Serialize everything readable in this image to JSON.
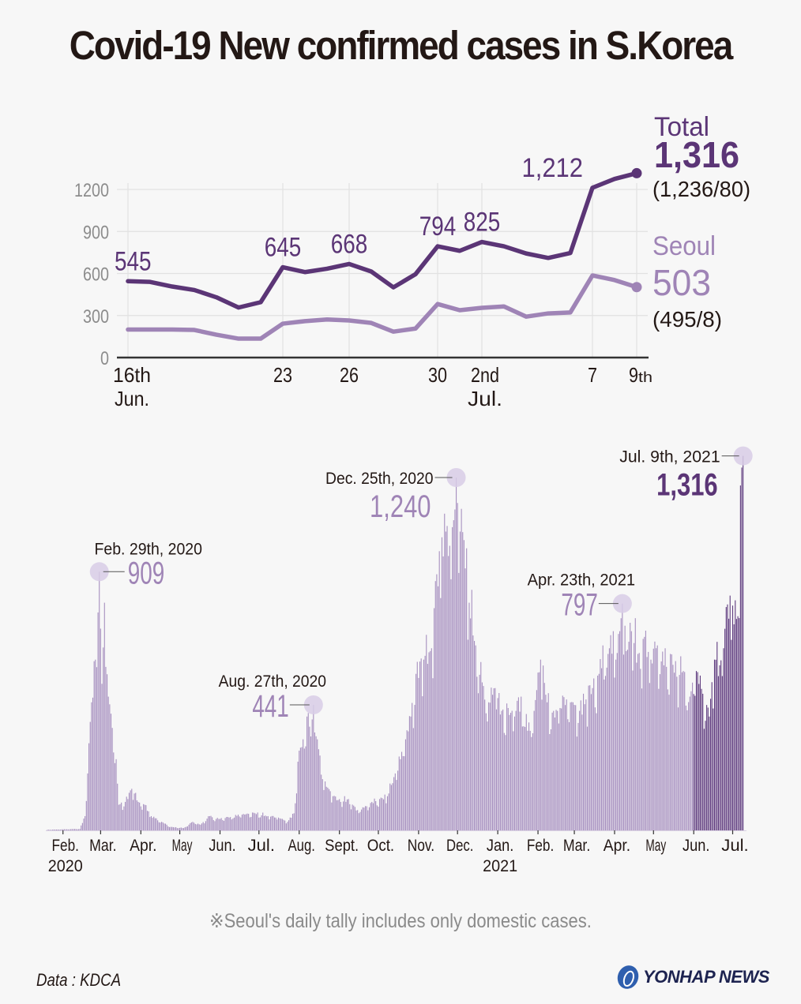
{
  "title": "Covid-19 New confirmed cases in S.Korea",
  "footnote": "※Seoul's daily tally includes only domestic cases.",
  "source": "Data : KDCA",
  "logo": "YONHAP NEWS",
  "colors": {
    "total": "#5b3576",
    "seoul": "#9f84b6",
    "bars": "#a68fbf",
    "bars_recent": "#5e3a7e",
    "marker": "#d8cde6",
    "grid": "#e2e2e2",
    "axis": "#333333",
    "tick_text": "#8c8c8c",
    "text": "#231815"
  },
  "chart_data": [
    {
      "type": "line",
      "title": "",
      "xlabel": "",
      "ylabel": "",
      "ylim": [
        0,
        1200
      ],
      "yticks": [
        0,
        300,
        600,
        900,
        1200
      ],
      "grid": true,
      "x": [
        "Jun 16",
        "Jun 17",
        "Jun 18",
        "Jun 19",
        "Jun 20",
        "Jun 21",
        "Jun 22",
        "Jun 23",
        "Jun 24",
        "Jun 25",
        "Jun 26",
        "Jun 27",
        "Jun 28",
        "Jun 29",
        "Jun 30",
        "Jul 1",
        "Jul 2",
        "Jul 3",
        "Jul 4",
        "Jul 5",
        "Jul 6",
        "Jul 7",
        "Jul 8",
        "Jul 9"
      ],
      "xtick_labels": [
        {
          "index": 0,
          "line1": "16th",
          "line2": "Jun."
        },
        {
          "index": 7,
          "line1": "23",
          "line2": ""
        },
        {
          "index": 10,
          "line1": "26",
          "line2": ""
        },
        {
          "index": 14,
          "line1": "30",
          "line2": ""
        },
        {
          "index": 16,
          "line1": "2nd",
          "line2": "Jul."
        },
        {
          "index": 21,
          "line1": "7",
          "line2": ""
        },
        {
          "index": 23,
          "line1": "9",
          "line2": "",
          "suffix": "th"
        }
      ],
      "series": [
        {
          "name": "Total",
          "values": [
            545,
            540,
            507,
            482,
            430,
            357,
            395,
            645,
            610,
            634,
            668,
            614,
            501,
            595,
            794,
            762,
            825,
            794,
            743,
            711,
            746,
            1212,
            1275,
            1316
          ],
          "data_labels": [
            {
              "index": 0,
              "text": "545"
            },
            {
              "index": 7,
              "text": "645"
            },
            {
              "index": 10,
              "text": "668"
            },
            {
              "index": 14,
              "text": "794"
            },
            {
              "index": 16,
              "text": "825"
            },
            {
              "index": 21,
              "text": "1,212"
            }
          ]
        },
        {
          "name": "Seoul",
          "values": [
            200,
            200,
            200,
            197,
            163,
            135,
            135,
            242,
            260,
            272,
            265,
            247,
            185,
            207,
            382,
            338,
            355,
            365,
            292,
            315,
            322,
            586,
            553,
            503
          ],
          "data_labels": []
        }
      ],
      "legend": {
        "placement": "right",
        "total": {
          "label": "Total",
          "value": "1,316",
          "breakdown": "(1,236/80)"
        },
        "seoul": {
          "label": "Seoul",
          "value": "503",
          "breakdown": "(495/8)"
        }
      }
    },
    {
      "type": "bar",
      "title": "",
      "xlabel": "",
      "ylabel": "",
      "ylim": [
        0,
        1316
      ],
      "grid": false,
      "x_start": "2020-01-20",
      "x_end": "2021-07-09",
      "recent_highlight_from": "2021-06-01",
      "month_ticks": [
        {
          "day": 12,
          "label": "Feb.",
          "sub": "2020"
        },
        {
          "day": 41,
          "label": "Mar.",
          "sub": ""
        },
        {
          "day": 72,
          "label": "Apr.",
          "sub": ""
        },
        {
          "day": 102,
          "label": "May",
          "sub": ""
        },
        {
          "day": 133,
          "label": "Jun.",
          "sub": ""
        },
        {
          "day": 163,
          "label": "Jul.",
          "sub": ""
        },
        {
          "day": 194,
          "label": "Aug.",
          "sub": ""
        },
        {
          "day": 225,
          "label": "Sept.",
          "sub": ""
        },
        {
          "day": 255,
          "label": "Oct.",
          "sub": ""
        },
        {
          "day": 286,
          "label": "Nov.",
          "sub": ""
        },
        {
          "day": 316,
          "label": "Dec.",
          "sub": ""
        },
        {
          "day": 347,
          "label": "Jan.",
          "sub": "2021"
        },
        {
          "day": 378,
          "label": "Feb.",
          "sub": ""
        },
        {
          "day": 406,
          "label": "Mar.",
          "sub": ""
        },
        {
          "day": 437,
          "label": "Apr.",
          "sub": ""
        },
        {
          "day": 467,
          "label": "May",
          "sub": ""
        },
        {
          "day": 498,
          "label": "Jun.",
          "sub": ""
        },
        {
          "day": 528,
          "label": "Jul.",
          "sub": ""
        }
      ],
      "anchors": [
        {
          "day": 0,
          "value": 2
        },
        {
          "day": 25,
          "value": 5
        },
        {
          "day": 29,
          "value": 50
        },
        {
          "day": 31,
          "value": 200
        },
        {
          "day": 34,
          "value": 450
        },
        {
          "day": 37,
          "value": 600
        },
        {
          "day": 40,
          "value": 909
        },
        {
          "day": 42,
          "value": 515
        },
        {
          "day": 44,
          "value": 800
        },
        {
          "day": 47,
          "value": 470
        },
        {
          "day": 50,
          "value": 360
        },
        {
          "day": 53,
          "value": 250
        },
        {
          "day": 55,
          "value": 90
        },
        {
          "day": 60,
          "value": 100
        },
        {
          "day": 65,
          "value": 146
        },
        {
          "day": 70,
          "value": 100
        },
        {
          "day": 75,
          "value": 90
        },
        {
          "day": 80,
          "value": 50
        },
        {
          "day": 88,
          "value": 30
        },
        {
          "day": 95,
          "value": 12
        },
        {
          "day": 105,
          "value": 8
        },
        {
          "day": 112,
          "value": 30
        },
        {
          "day": 118,
          "value": 20
        },
        {
          "day": 125,
          "value": 50
        },
        {
          "day": 130,
          "value": 40
        },
        {
          "day": 140,
          "value": 45
        },
        {
          "day": 150,
          "value": 55
        },
        {
          "day": 160,
          "value": 60
        },
        {
          "day": 170,
          "value": 50
        },
        {
          "day": 178,
          "value": 45
        },
        {
          "day": 185,
          "value": 30
        },
        {
          "day": 190,
          "value": 60
        },
        {
          "day": 194,
          "value": 280
        },
        {
          "day": 197,
          "value": 320
        },
        {
          "day": 200,
          "value": 400
        },
        {
          "day": 203,
          "value": 330
        },
        {
          "day": 205,
          "value": 441
        },
        {
          "day": 208,
          "value": 320
        },
        {
          "day": 212,
          "value": 180
        },
        {
          "day": 216,
          "value": 150
        },
        {
          "day": 220,
          "value": 120
        },
        {
          "day": 226,
          "value": 100
        },
        {
          "day": 232,
          "value": 110
        },
        {
          "day": 238,
          "value": 70
        },
        {
          "day": 244,
          "value": 80
        },
        {
          "day": 250,
          "value": 100
        },
        {
          "day": 256,
          "value": 110
        },
        {
          "day": 262,
          "value": 120
        },
        {
          "day": 268,
          "value": 200
        },
        {
          "day": 272,
          "value": 250
        },
        {
          "day": 276,
          "value": 320
        },
        {
          "day": 280,
          "value": 400
        },
        {
          "day": 284,
          "value": 550
        },
        {
          "day": 290,
          "value": 600
        },
        {
          "day": 296,
          "value": 640
        },
        {
          "day": 300,
          "value": 900
        },
        {
          "day": 304,
          "value": 1030
        },
        {
          "day": 307,
          "value": 1050
        },
        {
          "day": 310,
          "value": 1000
        },
        {
          "day": 313,
          "value": 1090
        },
        {
          "day": 315,
          "value": 1240
        },
        {
          "day": 318,
          "value": 1050
        },
        {
          "day": 321,
          "value": 1020
        },
        {
          "day": 325,
          "value": 800
        },
        {
          "day": 330,
          "value": 650
        },
        {
          "day": 335,
          "value": 520
        },
        {
          "day": 340,
          "value": 450
        },
        {
          "day": 345,
          "value": 500
        },
        {
          "day": 350,
          "value": 420
        },
        {
          "day": 355,
          "value": 430
        },
        {
          "day": 360,
          "value": 400
        },
        {
          "day": 365,
          "value": 470
        },
        {
          "day": 370,
          "value": 350
        },
        {
          "day": 375,
          "value": 420
        },
        {
          "day": 380,
          "value": 600
        },
        {
          "day": 385,
          "value": 450
        },
        {
          "day": 390,
          "value": 420
        },
        {
          "day": 395,
          "value": 430
        },
        {
          "day": 400,
          "value": 460
        },
        {
          "day": 405,
          "value": 450
        },
        {
          "day": 410,
          "value": 420
        },
        {
          "day": 415,
          "value": 460
        },
        {
          "day": 420,
          "value": 500
        },
        {
          "day": 425,
          "value": 550
        },
        {
          "day": 428,
          "value": 650
        },
        {
          "day": 432,
          "value": 620
        },
        {
          "day": 436,
          "value": 700
        },
        {
          "day": 438,
          "value": 600
        },
        {
          "day": 441,
          "value": 700
        },
        {
          "day": 443,
          "value": 797
        },
        {
          "day": 446,
          "value": 630
        },
        {
          "day": 450,
          "value": 700
        },
        {
          "day": 455,
          "value": 620
        },
        {
          "day": 460,
          "value": 680
        },
        {
          "day": 465,
          "value": 600
        },
        {
          "day": 470,
          "value": 650
        },
        {
          "day": 475,
          "value": 580
        },
        {
          "day": 480,
          "value": 620
        },
        {
          "day": 485,
          "value": 540
        },
        {
          "day": 490,
          "value": 560
        },
        {
          "day": 495,
          "value": 470
        },
        {
          "day": 500,
          "value": 560
        },
        {
          "day": 505,
          "value": 480
        },
        {
          "day": 510,
          "value": 400
        },
        {
          "day": 514,
          "value": 600
        },
        {
          "day": 518,
          "value": 580
        },
        {
          "day": 521,
          "value": 640
        },
        {
          "day": 524,
          "value": 794
        },
        {
          "day": 526,
          "value": 825
        },
        {
          "day": 528,
          "value": 790
        },
        {
          "day": 531,
          "value": 743
        },
        {
          "day": 533,
          "value": 746
        },
        {
          "day": 534,
          "value": 1212
        },
        {
          "day": 535,
          "value": 1275
        },
        {
          "day": 536,
          "value": 1316
        }
      ],
      "annotations": [
        {
          "day": 40,
          "date": "Feb. 29th, 2020",
          "value": 909,
          "value_label": "909",
          "style": "light",
          "layout": "label-right"
        },
        {
          "day": 205,
          "date": "Aug. 27th, 2020",
          "value": 441,
          "value_label": "441",
          "style": "light",
          "layout": "label-left"
        },
        {
          "day": 315,
          "date": "Dec. 25th, 2020",
          "value": 1240,
          "value_label": "1,240",
          "style": "light",
          "layout": "date-left"
        },
        {
          "day": 443,
          "date": "Apr. 23th, 2021",
          "value": 797,
          "value_label": "797",
          "style": "light",
          "layout": "label-left"
        },
        {
          "day": 536,
          "date": "Jul. 9th, 2021",
          "value": 1316,
          "value_label": "1,316",
          "style": "dark",
          "layout": "date-left"
        }
      ]
    }
  ]
}
